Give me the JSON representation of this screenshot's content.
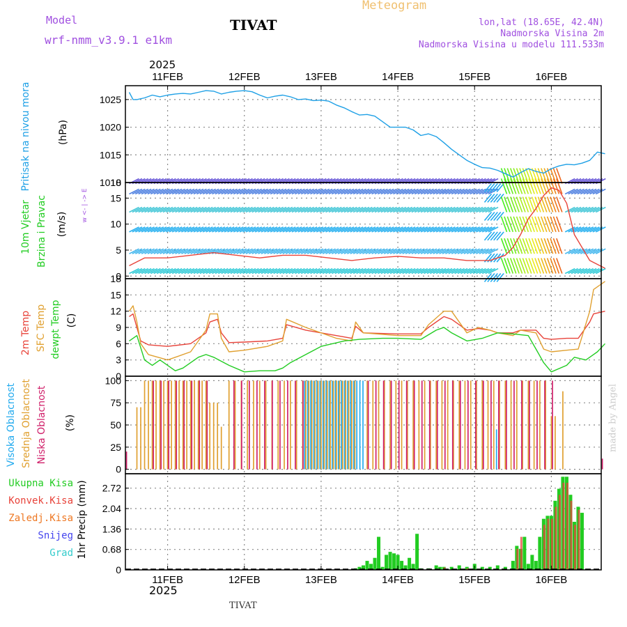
{
  "header": {
    "model_label": "Model",
    "model_name": "wrf-nmm_v3.9.1 e1km",
    "station": "TIVAT",
    "product": "Meteogram",
    "lonlat": "lon,lat (18.65E, 42.4N)",
    "elevation": "Nadmorska Visina 2m",
    "model_elevation": "Nadmorska Visina u modelu 111.533m",
    "watermark": "made by Angel",
    "footer_station": "TIVAT"
  },
  "colors": {
    "pressure": "#1ea0e6",
    "temp2m": "#e8433a",
    "sfctemp": "#e0a030",
    "dewpt": "#22cc22",
    "high_cloud": "#22aaee",
    "mid_cloud": "#e0a030",
    "low_cloud": "#d0206a",
    "total_precip": "#22cc22",
    "conv_precip": "#e8433a",
    "frozen_precip": "#ee7722",
    "snow": "#4444ee",
    "graupel": "#33cccc",
    "header_purple": "#a050e0",
    "product_orange": "#f0c070"
  },
  "time_axis": {
    "year": "2025",
    "days": [
      "11FEB",
      "12FEB",
      "13FEB",
      "14FEB",
      "15FEB",
      "16FEB"
    ]
  },
  "chart_data": [
    {
      "type": "line",
      "panel": "pressure",
      "ylabel": [
        "Pritisak na nivou mora",
        "(hPa)"
      ],
      "ylim": [
        1010,
        1027.5
      ],
      "yticks": [
        "1010",
        "1015",
        "1020",
        "1025"
      ],
      "x_unit": "days since 11FEB 00Z",
      "series": [
        {
          "color_key": "pressure",
          "x": [
            -0.5,
            -0.45,
            -0.4,
            -0.3,
            -0.2,
            -0.1,
            0.0,
            0.1,
            0.2,
            0.3,
            0.4,
            0.5,
            0.6,
            0.7,
            0.8,
            0.9,
            1.0,
            1.1,
            1.2,
            1.3,
            1.4,
            1.5,
            1.6,
            1.7,
            1.8,
            1.9,
            2.0,
            2.1,
            2.2,
            2.3,
            2.4,
            2.5,
            2.6,
            2.7,
            2.8,
            2.9,
            3.0,
            3.1,
            3.2,
            3.3,
            3.4,
            3.5,
            3.6,
            3.7,
            3.8,
            3.9,
            4.0,
            4.1,
            4.2,
            4.3,
            4.4,
            4.5,
            4.6,
            4.7,
            4.8,
            4.9,
            5.0,
            5.1,
            5.2,
            5.3,
            5.4,
            5.5,
            5.6,
            5.7
          ],
          "y": [
            1026.3,
            1025.0,
            1025.0,
            1025.3,
            1025.8,
            1025.5,
            1025.8,
            1026.0,
            1026.1,
            1026.0,
            1026.3,
            1026.6,
            1026.5,
            1026.0,
            1026.3,
            1026.5,
            1026.6,
            1026.4,
            1025.8,
            1025.3,
            1025.6,
            1025.8,
            1025.5,
            1025.0,
            1025.1,
            1024.8,
            1024.9,
            1024.7,
            1024.0,
            1023.5,
            1022.8,
            1022.2,
            1022.3,
            1022.0,
            1021.0,
            1020.0,
            1020.0,
            1020.0,
            1019.5,
            1018.5,
            1018.8,
            1018.3,
            1017.2,
            1016.0,
            1015.0,
            1014.0,
            1013.3,
            1012.7,
            1012.6,
            1012.2,
            1011.6,
            1011.0,
            1011.8,
            1012.5,
            1012.0,
            1011.7,
            1012.5,
            1013.0,
            1013.3,
            1013.2,
            1013.5,
            1014.0,
            1015.5,
            1015.2
          ]
        }
      ]
    },
    {
      "type": "line",
      "panel": "wind",
      "ylabel": [
        "10m Vjetar",
        "Brzina i Pravac",
        "(m/s)"
      ],
      "compass": "w <- | -> E",
      "ylim": [
        -0.5,
        18
      ],
      "yticks": [
        "0",
        "5",
        "10",
        "15"
      ],
      "top_tick": "18",
      "x_unit": "days since 11FEB 00Z",
      "series": [
        {
          "name": "wind speed",
          "color_key": "temp2m",
          "x": [
            -0.5,
            -0.3,
            0.0,
            0.3,
            0.6,
            0.9,
            1.2,
            1.5,
            1.8,
            2.1,
            2.4,
            2.7,
            3.0,
            3.3,
            3.6,
            3.9,
            4.2,
            4.4,
            4.5,
            4.6,
            4.7,
            4.8,
            4.9,
            5.0,
            5.1,
            5.2,
            5.3,
            5.5,
            5.7
          ],
          "y": [
            2.0,
            3.5,
            3.5,
            4.0,
            4.5,
            4.0,
            3.5,
            4.0,
            4.0,
            3.5,
            3.0,
            3.5,
            3.8,
            3.5,
            3.5,
            3.0,
            3.0,
            4.0,
            5.5,
            8.0,
            11.0,
            13.0,
            15.5,
            17.0,
            16.5,
            14.0,
            8.0,
            3.0,
            1.5
          ]
        }
      ]
    },
    {
      "type": "line",
      "panel": "temperature",
      "ylabel": [
        "2m Temp",
        "SFC Temp",
        "dewpt Temp",
        "(C)"
      ],
      "ylim": [
        0,
        18
      ],
      "yticks": [
        "0",
        "3",
        "6",
        "9",
        "12",
        "15"
      ],
      "top_tick": "18",
      "x_unit": "days since 11FEB 00Z",
      "series": [
        {
          "name": "2m Temp",
          "color_key": "temp2m",
          "x": [
            -0.5,
            -0.45,
            -0.4,
            -0.35,
            -0.25,
            0.0,
            0.3,
            0.5,
            0.55,
            0.65,
            0.7,
            0.8,
            1.0,
            1.3,
            1.5,
            1.55,
            1.8,
            2.2,
            2.4,
            2.45,
            2.55,
            3.0,
            3.3,
            3.4,
            3.6,
            3.7,
            3.9,
            4.05,
            4.2,
            4.3,
            4.5,
            4.6,
            4.8,
            4.9,
            5.0,
            5.2,
            5.35,
            5.5,
            5.55,
            5.7
          ],
          "y": [
            11.0,
            11.5,
            9.0,
            6.5,
            5.8,
            5.5,
            6.0,
            8.0,
            10.0,
            10.5,
            8.0,
            6.2,
            6.3,
            6.5,
            7.0,
            9.5,
            8.5,
            7.5,
            7.0,
            9.2,
            8.0,
            7.8,
            7.8,
            9.0,
            11.0,
            10.5,
            8.5,
            8.8,
            8.5,
            8.0,
            8.0,
            8.5,
            8.5,
            7.0,
            6.8,
            7.0,
            7.0,
            10.0,
            11.5,
            12.0
          ]
        },
        {
          "name": "SFC Temp",
          "color_key": "sfctemp",
          "x": [
            -0.5,
            -0.45,
            -0.4,
            -0.35,
            -0.25,
            0.0,
            0.3,
            0.5,
            0.55,
            0.65,
            0.7,
            0.8,
            1.0,
            1.3,
            1.5,
            1.55,
            1.8,
            2.2,
            2.4,
            2.45,
            2.55,
            3.0,
            3.3,
            3.4,
            3.6,
            3.7,
            3.9,
            4.05,
            4.2,
            4.3,
            4.5,
            4.6,
            4.8,
            4.9,
            5.0,
            5.2,
            5.35,
            5.5,
            5.55,
            5.7
          ],
          "y": [
            12.0,
            13.0,
            10.0,
            6.0,
            4.0,
            3.0,
            4.5,
            8.5,
            11.5,
            11.5,
            7.0,
            4.5,
            4.8,
            5.5,
            6.5,
            10.5,
            9.0,
            7.0,
            6.5,
            10.0,
            8.0,
            7.5,
            7.5,
            9.5,
            12.0,
            12.0,
            8.0,
            9.0,
            8.5,
            8.0,
            7.5,
            8.5,
            8.0,
            5.0,
            4.5,
            4.8,
            5.0,
            12.0,
            16.0,
            17.5
          ]
        },
        {
          "name": "dewpt Temp",
          "color_key": "dewpt",
          "x": [
            -0.5,
            -0.4,
            -0.3,
            -0.2,
            -0.1,
            0.0,
            0.1,
            0.2,
            0.4,
            0.5,
            0.6,
            0.8,
            1.0,
            1.2,
            1.4,
            1.5,
            1.6,
            1.8,
            2.0,
            2.3,
            2.5,
            2.8,
            3.0,
            3.3,
            3.5,
            3.6,
            3.7,
            3.9,
            4.1,
            4.3,
            4.5,
            4.7,
            4.8,
            4.9,
            5.0,
            5.2,
            5.3,
            5.45,
            5.6,
            5.7
          ],
          "y": [
            6.5,
            7.5,
            3.0,
            2.0,
            3.0,
            2.0,
            1.0,
            1.5,
            3.5,
            4.0,
            3.5,
            2.0,
            0.8,
            1.0,
            1.0,
            1.5,
            2.5,
            4.0,
            5.5,
            6.5,
            6.8,
            7.0,
            7.0,
            6.8,
            8.5,
            9.0,
            8.0,
            6.5,
            7.0,
            8.0,
            7.8,
            7.5,
            5.0,
            2.5,
            0.8,
            2.0,
            3.5,
            3.0,
            4.5,
            6.0
          ]
        }
      ]
    },
    {
      "type": "bar",
      "panel": "cloud",
      "ylabel": [
        "Visoka Oblacnost",
        "Srednja Oblacnost",
        "Niska Oblacnost",
        "(%)"
      ],
      "ylim": [
        -5,
        105
      ],
      "yticks": [
        "0",
        "25",
        "50",
        "75",
        "100"
      ],
      "x_unit": "days since 11FEB 00Z",
      "series": [
        {
          "name": "Visoka Oblacnost",
          "color_key": "high_cloud",
          "ranges": [
            {
              "from": 1.8,
              "to": 2.55,
              "step": 0.04,
              "value": 100
            },
            {
              "from": 4.3,
              "to": 4.3,
              "step": 0.05,
              "value": 45
            }
          ]
        },
        {
          "name": "Srednja Oblacnost",
          "color_key": "mid_cloud",
          "ranges": [
            {
              "from": -0.4,
              "to": -0.35,
              "step": 0.05,
              "value": 70
            },
            {
              "from": -0.3,
              "to": 0.5,
              "step": 0.05,
              "value": 100
            },
            {
              "from": 0.55,
              "to": 0.65,
              "step": 0.05,
              "value": 75
            },
            {
              "from": 0.7,
              "to": 0.7,
              "step": 0.05,
              "value": 48
            },
            {
              "from": 0.8,
              "to": 1.75,
              "step": 0.08,
              "value": 100
            },
            {
              "from": 1.8,
              "to": 2.45,
              "step": 0.04,
              "value": 100
            },
            {
              "from": 2.6,
              "to": 4.95,
              "step": 0.075,
              "value": 100
            },
            {
              "from": 5.0,
              "to": 5.05,
              "step": 0.05,
              "value": 60
            },
            {
              "from": 5.15,
              "to": 5.15,
              "step": 0.05,
              "value": 88
            }
          ]
        },
        {
          "name": "Niska Oblacnost",
          "color_key": "low_cloud",
          "ranges": [
            {
              "from": -0.55,
              "to": -0.55,
              "step": 0.05,
              "value": 20
            },
            {
              "from": -0.2,
              "to": 0.5,
              "step": 0.1,
              "value": 100
            },
            {
              "from": 0.85,
              "to": 1.75,
              "step": 0.1,
              "value": 100
            },
            {
              "from": 2.6,
              "to": 5.0,
              "step": 0.1,
              "value": 100
            },
            {
              "from": 5.65,
              "to": 5.65,
              "step": 0.05,
              "value": 12
            }
          ]
        }
      ]
    },
    {
      "type": "bar",
      "panel": "precip",
      "ylabel": [
        "1hr Precip (mm)"
      ],
      "ylim": [
        0,
        3.2
      ],
      "yticks": [
        "0",
        "0.68",
        "1.36",
        "2.04",
        "2.72"
      ],
      "legend": [
        "Ukupna Kisa",
        "Konvek.Kisa",
        "Zaledj.Kisa",
        "Snijeg",
        "Grad"
      ],
      "legend_color_keys": [
        "total_precip",
        "conv_precip",
        "frozen_precip",
        "snow",
        "graupel"
      ],
      "x_unit": "days since 11FEB 00Z",
      "series": [
        {
          "name": "Ukupna Kisa",
          "color_key": "total_precip",
          "x": [
            2.45,
            2.5,
            2.55,
            2.6,
            2.65,
            2.7,
            2.75,
            2.8,
            2.85,
            2.9,
            2.95,
            3.0,
            3.05,
            3.1,
            3.15,
            3.2,
            3.25,
            3.3,
            3.4,
            3.5,
            3.55,
            3.6,
            3.7,
            3.8,
            3.9,
            4.0,
            4.1,
            4.2,
            4.3,
            4.4,
            4.5,
            4.55,
            4.6,
            4.65,
            4.7,
            4.75,
            4.8,
            4.85,
            4.9,
            4.95,
            5.0,
            5.05,
            5.1,
            5.15,
            5.2,
            5.25,
            5.3,
            5.35,
            5.4
          ],
          "y": [
            0.05,
            0.1,
            0.15,
            0.3,
            0.2,
            0.4,
            1.1,
            0.1,
            0.5,
            0.6,
            0.55,
            0.5,
            0.3,
            0.15,
            0.4,
            0.2,
            1.2,
            0.05,
            0.05,
            0.15,
            0.1,
            0.1,
            0.1,
            0.15,
            0.1,
            0.2,
            0.1,
            0.1,
            0.15,
            0.1,
            0.3,
            0.8,
            0.7,
            1.1,
            0.2,
            0.5,
            0.3,
            1.1,
            1.7,
            1.8,
            1.8,
            2.3,
            2.7,
            3.1,
            3.1,
            2.5,
            1.6,
            2.1,
            1.9
          ]
        },
        {
          "name": "Konvek.Kisa",
          "color_key": "conv_precip",
          "x": [
            3.6,
            3.9,
            4.55,
            4.6,
            4.9,
            4.95,
            5.0,
            5.05,
            5.1,
            5.15,
            5.2,
            5.25,
            5.3,
            5.35
          ],
          "y": [
            0.08,
            0.05,
            0.7,
            1.1,
            1.5,
            1.7,
            1.7,
            2.1,
            2.5,
            2.9,
            2.9,
            2.3,
            1.5,
            2.0
          ]
        }
      ]
    }
  ]
}
